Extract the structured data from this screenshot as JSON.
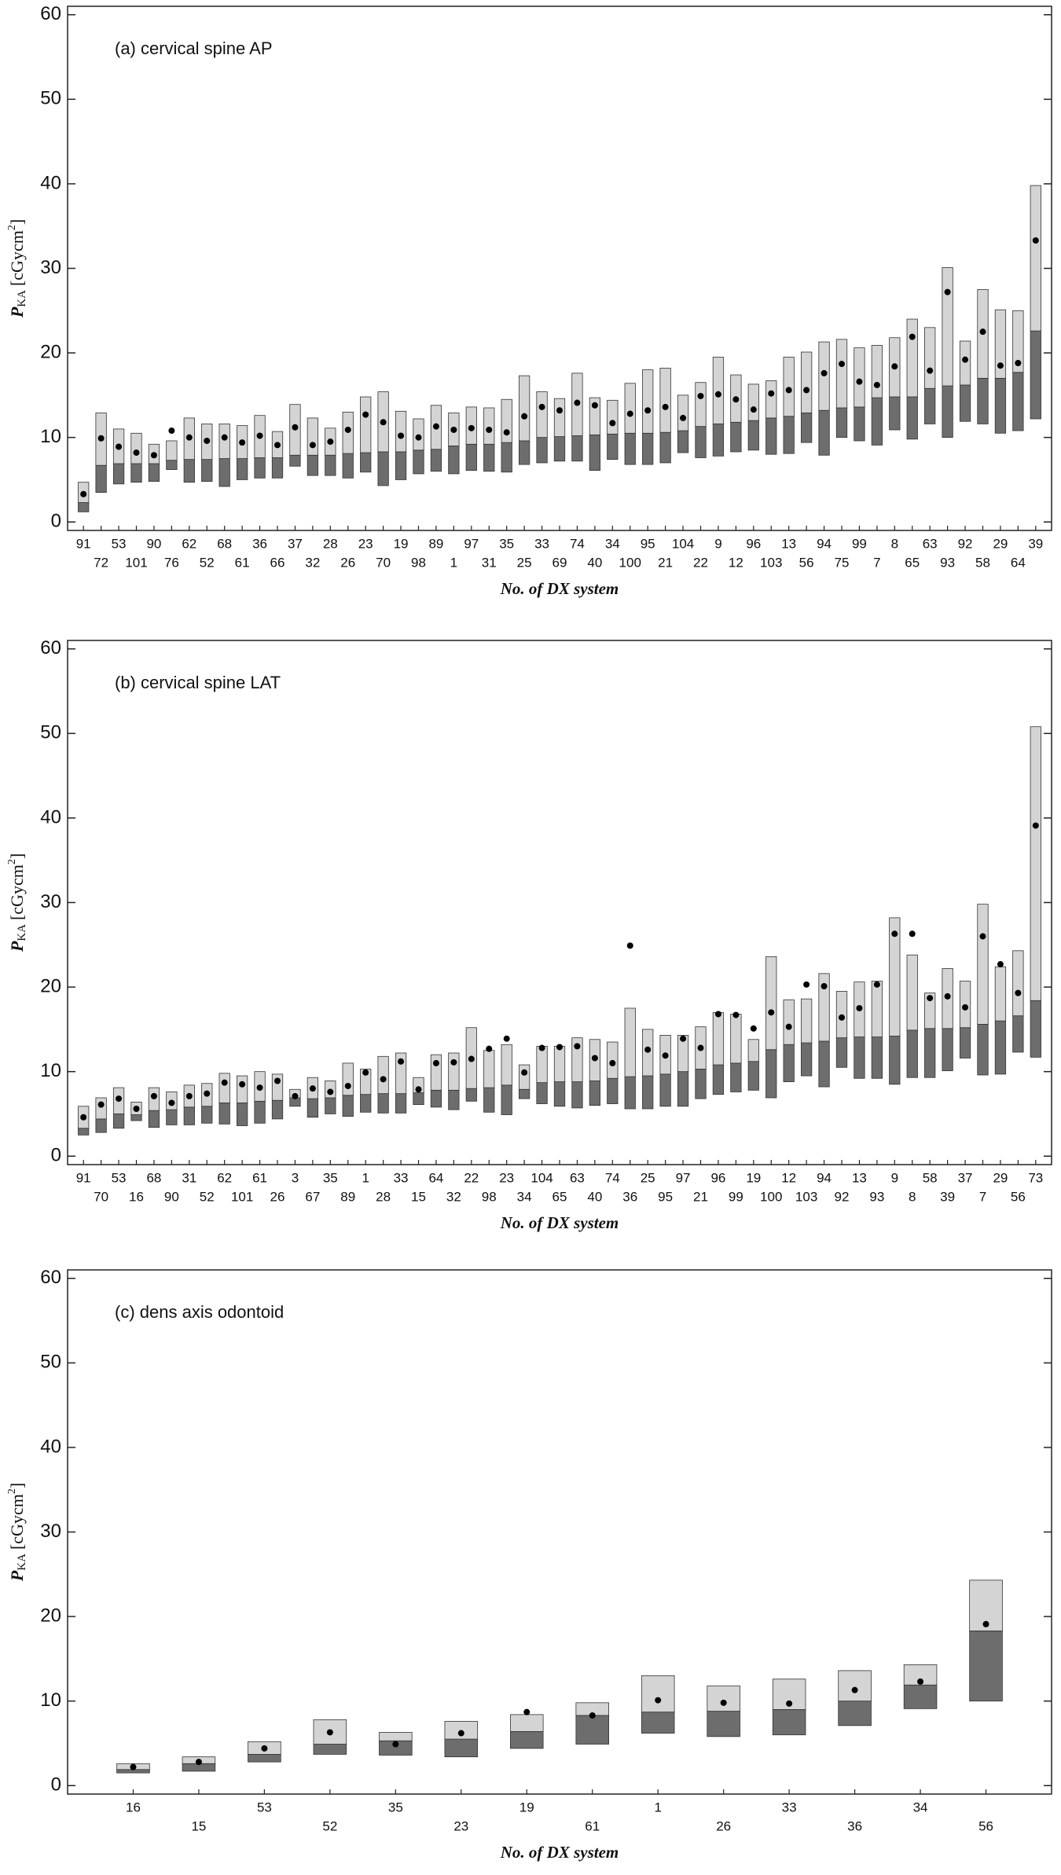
{
  "chart_data": [
    {
      "type": "range-bar",
      "label": "(a) cervical spine AP",
      "xlabel": "No. of DX system",
      "ylabel": {
        "symbol": "P",
        "subscript": "KA",
        "unit": "[cGycm",
        "superscript": "2",
        "close": "]"
      },
      "ylim": [
        -1,
        61
      ],
      "yticks": [
        0,
        10,
        20,
        30,
        40,
        50,
        60
      ],
      "color_low": "#6d6d6d",
      "color_high": "#d4d4d4",
      "dot_color": "#000000",
      "categories": [
        "91",
        "72",
        "53",
        "101",
        "90",
        "76",
        "62",
        "52",
        "68",
        "61",
        "36",
        "66",
        "37",
        "32",
        "28",
        "26",
        "23",
        "70",
        "19",
        "98",
        "89",
        "1",
        "97",
        "31",
        "35",
        "25",
        "33",
        "69",
        "74",
        "40",
        "34",
        "100",
        "95",
        "21",
        "104",
        "22",
        "9",
        "12",
        "96",
        "103",
        "13",
        "56",
        "94",
        "75",
        "99",
        "7",
        "8",
        "65",
        "63",
        "93",
        "92",
        "58",
        "29",
        "64",
        "39"
      ],
      "low": [
        1.2,
        3.5,
        4.5,
        4.7,
        4.8,
        6.2,
        4.7,
        4.8,
        4.2,
        5.0,
        5.2,
        5.2,
        6.6,
        5.5,
        5.5,
        5.2,
        5.9,
        4.3,
        5.0,
        5.7,
        6.0,
        5.7,
        6.1,
        6.0,
        5.9,
        6.8,
        7.0,
        7.2,
        7.2,
        6.1,
        7.4,
        6.8,
        6.8,
        7.0,
        8.2,
        7.6,
        7.8,
        8.3,
        8.5,
        8.0,
        8.1,
        9.4,
        7.9,
        10.0,
        9.6,
        9.1,
        10.9,
        9.8,
        11.6,
        10.0,
        11.9,
        11.6,
        10.5,
        10.8,
        12.2
      ],
      "mid": [
        2.3,
        6.7,
        6.9,
        6.9,
        6.9,
        7.3,
        7.4,
        7.4,
        7.5,
        7.5,
        7.6,
        7.6,
        7.9,
        7.9,
        7.9,
        8.1,
        8.2,
        8.3,
        8.3,
        8.5,
        8.6,
        9.0,
        9.2,
        9.2,
        9.4,
        9.6,
        10.0,
        10.1,
        10.2,
        10.3,
        10.4,
        10.5,
        10.5,
        10.6,
        10.8,
        11.3,
        11.6,
        11.8,
        12.0,
        12.3,
        12.5,
        12.9,
        13.2,
        13.5,
        13.6,
        14.7,
        14.8,
        14.8,
        15.8,
        16.1,
        16.2,
        17.0,
        17.0,
        17.7,
        22.6
      ],
      "high": [
        4.7,
        12.9,
        11.0,
        10.5,
        9.2,
        9.6,
        12.3,
        11.6,
        11.6,
        11.4,
        12.6,
        10.7,
        13.9,
        12.3,
        11.1,
        13.0,
        14.8,
        15.4,
        13.1,
        12.2,
        13.8,
        12.9,
        13.6,
        13.5,
        14.5,
        17.3,
        15.4,
        14.6,
        17.6,
        14.7,
        14.4,
        16.4,
        18.0,
        18.2,
        15.0,
        16.5,
        19.5,
        17.4,
        16.3,
        16.7,
        19.5,
        20.1,
        21.3,
        21.6,
        20.6,
        20.9,
        21.8,
        24.0,
        23.0,
        30.1,
        21.4,
        27.5,
        25.1,
        25.0,
        39.8
      ],
      "mean": [
        3.3,
        9.9,
        8.9,
        8.2,
        7.9,
        10.8,
        10.0,
        9.6,
        10.0,
        9.4,
        10.2,
        9.1,
        11.2,
        9.1,
        9.5,
        10.9,
        12.7,
        11.8,
        10.2,
        10.0,
        11.3,
        10.9,
        11.1,
        10.9,
        10.6,
        12.5,
        13.6,
        13.2,
        14.1,
        13.8,
        11.7,
        12.8,
        13.2,
        13.6,
        12.3,
        14.9,
        15.1,
        14.5,
        13.3,
        15.2,
        15.6,
        15.6,
        17.6,
        18.7,
        16.6,
        16.2,
        18.4,
        21.9,
        17.9,
        27.2,
        19.2,
        22.5,
        18.5,
        18.8,
        33.3
      ]
    },
    {
      "type": "range-bar",
      "label": "(b) cervical spine LAT",
      "xlabel": "No. of DX system",
      "ylabel": {
        "symbol": "P",
        "subscript": "KA",
        "unit": "[cGycm",
        "superscript": "2",
        "close": "]"
      },
      "ylim": [
        -1,
        61
      ],
      "yticks": [
        0,
        10,
        20,
        30,
        40,
        50,
        60
      ],
      "color_low": "#6d6d6d",
      "color_high": "#d4d4d4",
      "dot_color": "#000000",
      "categories": [
        "91",
        "70",
        "53",
        "16",
        "68",
        "90",
        "31",
        "52",
        "62",
        "101",
        "61",
        "26",
        "3",
        "67",
        "35",
        "89",
        "1",
        "28",
        "33",
        "15",
        "64",
        "32",
        "22",
        "98",
        "23",
        "34",
        "104",
        "65",
        "63",
        "40",
        "74",
        "36",
        "25",
        "95",
        "97",
        "21",
        "96",
        "99",
        "19",
        "100",
        "12",
        "103",
        "94",
        "92",
        "13",
        "93",
        "9",
        "8",
        "58",
        "39",
        "37",
        "7",
        "29",
        "56",
        "73"
      ],
      "low": [
        2.5,
        2.8,
        3.3,
        4.2,
        3.4,
        3.7,
        3.7,
        3.9,
        3.8,
        3.6,
        3.9,
        4.4,
        5.9,
        4.6,
        5.0,
        4.7,
        5.2,
        5.1,
        5.1,
        6.1,
        5.8,
        5.5,
        6.5,
        5.2,
        4.9,
        6.8,
        6.2,
        5.9,
        5.7,
        6.0,
        6.2,
        5.6,
        5.6,
        5.9,
        5.9,
        6.8,
        7.3,
        7.6,
        7.8,
        6.9,
        8.8,
        9.5,
        8.2,
        10.5,
        9.2,
        9.2,
        8.5,
        9.3,
        9.3,
        10.1,
        11.6,
        9.6,
        9.7,
        12.3,
        11.7
      ],
      "mid": [
        3.3,
        4.4,
        5.0,
        4.9,
        5.4,
        5.5,
        5.8,
        5.9,
        6.3,
        6.3,
        6.5,
        6.6,
        6.9,
        6.8,
        6.9,
        7.2,
        7.3,
        7.4,
        7.4,
        7.5,
        7.8,
        7.8,
        8.0,
        8.1,
        8.4,
        7.9,
        8.7,
        8.8,
        8.8,
        8.9,
        9.2,
        9.4,
        9.5,
        9.7,
        10.0,
        10.3,
        10.8,
        11.0,
        11.2,
        12.6,
        13.2,
        13.4,
        13.6,
        14.0,
        14.1,
        14.1,
        14.2,
        14.9,
        15.1,
        15.1,
        15.2,
        15.6,
        16.0,
        16.6,
        18.4
      ],
      "high": [
        5.9,
        6.9,
        8.1,
        6.4,
        8.1,
        7.6,
        8.4,
        8.6,
        9.8,
        9.5,
        10.0,
        9.7,
        7.9,
        9.3,
        8.9,
        11.0,
        10.3,
        11.8,
        12.2,
        9.3,
        12.0,
        12.2,
        15.2,
        12.5,
        13.2,
        10.8,
        13.0,
        13.0,
        14.0,
        13.8,
        13.5,
        17.5,
        15.0,
        14.3,
        14.3,
        15.3,
        17.0,
        16.8,
        13.8,
        23.6,
        18.5,
        18.6,
        21.6,
        19.5,
        20.6,
        20.7,
        28.2,
        23.8,
        19.3,
        22.2,
        20.7,
        29.8,
        22.4,
        24.3,
        50.8
      ],
      "mean": [
        4.6,
        6.1,
        6.8,
        5.6,
        7.1,
        6.3,
        7.1,
        7.4,
        8.7,
        8.5,
        8.1,
        8.9,
        7.1,
        8.0,
        7.6,
        8.3,
        9.9,
        9.1,
        11.2,
        7.9,
        11.0,
        11.1,
        11.5,
        12.7,
        13.9,
        9.9,
        12.8,
        12.9,
        13.0,
        11.6,
        11.0,
        24.9,
        12.6,
        11.9,
        13.9,
        12.8,
        16.8,
        16.7,
        15.1,
        17.0,
        15.3,
        20.3,
        20.1,
        16.4,
        17.5,
        20.3,
        26.3,
        26.3,
        18.7,
        18.9,
        17.6,
        26.0,
        22.7,
        19.3,
        39.1
      ]
    },
    {
      "type": "range-bar",
      "label": "(c) dens axis odontoid",
      "xlabel": "No. of DX system",
      "ylabel": {
        "symbol": "P",
        "subscript": "KA",
        "unit": "[cGycm",
        "superscript": "2",
        "close": "]"
      },
      "ylim": [
        -1,
        61
      ],
      "yticks": [
        0,
        10,
        20,
        30,
        40,
        50,
        60
      ],
      "color_low": "#6d6d6d",
      "color_high": "#d4d4d4",
      "dot_color": "#000000",
      "categories": [
        "16",
        "15",
        "53",
        "52",
        "35",
        "23",
        "19",
        "61",
        "1",
        "26",
        "33",
        "36",
        "34",
        "56"
      ],
      "low": [
        1.5,
        1.7,
        2.8,
        3.7,
        3.6,
        3.4,
        4.4,
        4.9,
        6.2,
        5.8,
        6.0,
        7.1,
        9.1,
        10.0
      ],
      "mid": [
        1.9,
        2.6,
        3.7,
        4.9,
        5.3,
        5.5,
        6.4,
        8.3,
        8.7,
        8.8,
        9.0,
        10.0,
        11.9,
        18.3
      ],
      "high": [
        2.6,
        3.4,
        5.2,
        7.8,
        6.3,
        7.6,
        8.4,
        9.8,
        13.0,
        11.8,
        12.6,
        13.6,
        14.3,
        24.3
      ],
      "mean": [
        2.2,
        2.8,
        4.4,
        6.3,
        4.9,
        6.2,
        8.7,
        8.3,
        10.1,
        9.8,
        9.7,
        11.3,
        12.3,
        19.1
      ]
    }
  ]
}
